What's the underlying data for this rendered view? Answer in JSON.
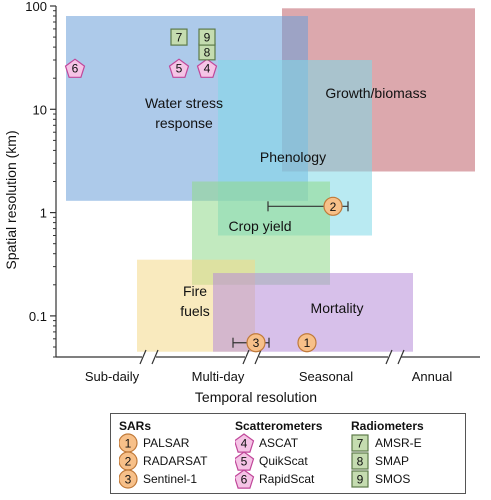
{
  "chart_data": {
    "type": "scatter",
    "title": "",
    "xlabel": "Temporal resolution",
    "ylabel": "Spatial resolution (km)",
    "x_categories": [
      "Sub-daily",
      "Multi-day",
      "Seasonal",
      "Annual"
    ],
    "y_scale": "log",
    "ylim": [
      0.04,
      100
    ],
    "y_ticks": [
      {
        "value": 100,
        "label": "100"
      },
      {
        "value": 10,
        "label": "10"
      },
      {
        "value": 1,
        "label": "1"
      },
      {
        "value": 0.1,
        "label": "0.1"
      }
    ],
    "regions": [
      {
        "name": "Growth/biomass",
        "x_range": [
          "Multi-day/Seasonal",
          "past Annual"
        ],
        "y_range": [
          2.5,
          95
        ],
        "color": "#c0606a"
      },
      {
        "name": "Water stress response",
        "x_range": [
          "Sub-daily",
          "Multi-day/Seasonal"
        ],
        "y_range": [
          1.3,
          80
        ],
        "color": "#6a9fd8"
      },
      {
        "name": "Phenology",
        "x_range": [
          "Multi-day",
          "Seasonal"
        ],
        "y_range": [
          0.6,
          30
        ],
        "color": "#7fd8e8"
      },
      {
        "name": "Crop yield",
        "x_range": [
          "Multi-day",
          "Seasonal"
        ],
        "y_range": [
          0.2,
          2
        ],
        "color": "#8fd88a"
      },
      {
        "name": "Fire fuels",
        "x_range": [
          "Sub-daily/Multi-day",
          "Multi-day/Seasonal"
        ],
        "y_range": [
          0.045,
          0.35
        ],
        "color": "#f4d888"
      },
      {
        "name": "Mortality",
        "x_range": [
          "Multi-day",
          "Seasonal/Annual"
        ],
        "y_range": [
          0.045,
          0.26
        ],
        "color": "#b78cd8"
      }
    ],
    "sensors": [
      {
        "id": "1",
        "type": "SARs",
        "x": "Seasonal",
        "y": 0.055
      },
      {
        "id": "2",
        "type": "SARs",
        "x": "Seasonal",
        "y": 1.15,
        "x_range": [
          "Multi-day",
          "Seasonal"
        ]
      },
      {
        "id": "3",
        "type": "SARs",
        "x": "Multi-day",
        "y": 0.055,
        "x_range": [
          "Multi-day",
          "Multi-day"
        ]
      },
      {
        "id": "4",
        "type": "Scatterometers",
        "x": "Multi-day",
        "y": 25
      },
      {
        "id": "5",
        "type": "Scatterometers",
        "x": "Multi-day",
        "y": 25
      },
      {
        "id": "6",
        "type": "Scatterometers",
        "x": "Sub-daily",
        "y": 25
      },
      {
        "id": "7",
        "type": "Radiometers",
        "x": "Multi-day",
        "y": 50
      },
      {
        "id": "8",
        "type": "Radiometers",
        "x": "Multi-day",
        "y": 36
      },
      {
        "id": "9",
        "type": "Radiometers",
        "x": "Multi-day",
        "y": 50
      }
    ],
    "legend": {
      "placement": "bottom",
      "groups": [
        {
          "title": "SARs",
          "shape": "circle",
          "color": "#f7c089",
          "items": [
            {
              "num": "1",
              "label": "PALSAR"
            },
            {
              "num": "2",
              "label": "RADARSAT"
            },
            {
              "num": "3",
              "label": "Sentinel-1"
            }
          ]
        },
        {
          "title": "Scatterometers",
          "shape": "pentagon",
          "color": "#f5c4e6",
          "items": [
            {
              "num": "4",
              "label": "ASCAT"
            },
            {
              "num": "5",
              "label": "QuikScat"
            },
            {
              "num": "6",
              "label": "RapidScat"
            }
          ]
        },
        {
          "title": "Radiometers",
          "shape": "square",
          "color": "#c5dcb0",
          "items": [
            {
              "num": "7",
              "label": "AMSR-E"
            },
            {
              "num": "8",
              "label": "SMAP"
            },
            {
              "num": "9",
              "label": "SMOS"
            }
          ]
        }
      ]
    }
  }
}
